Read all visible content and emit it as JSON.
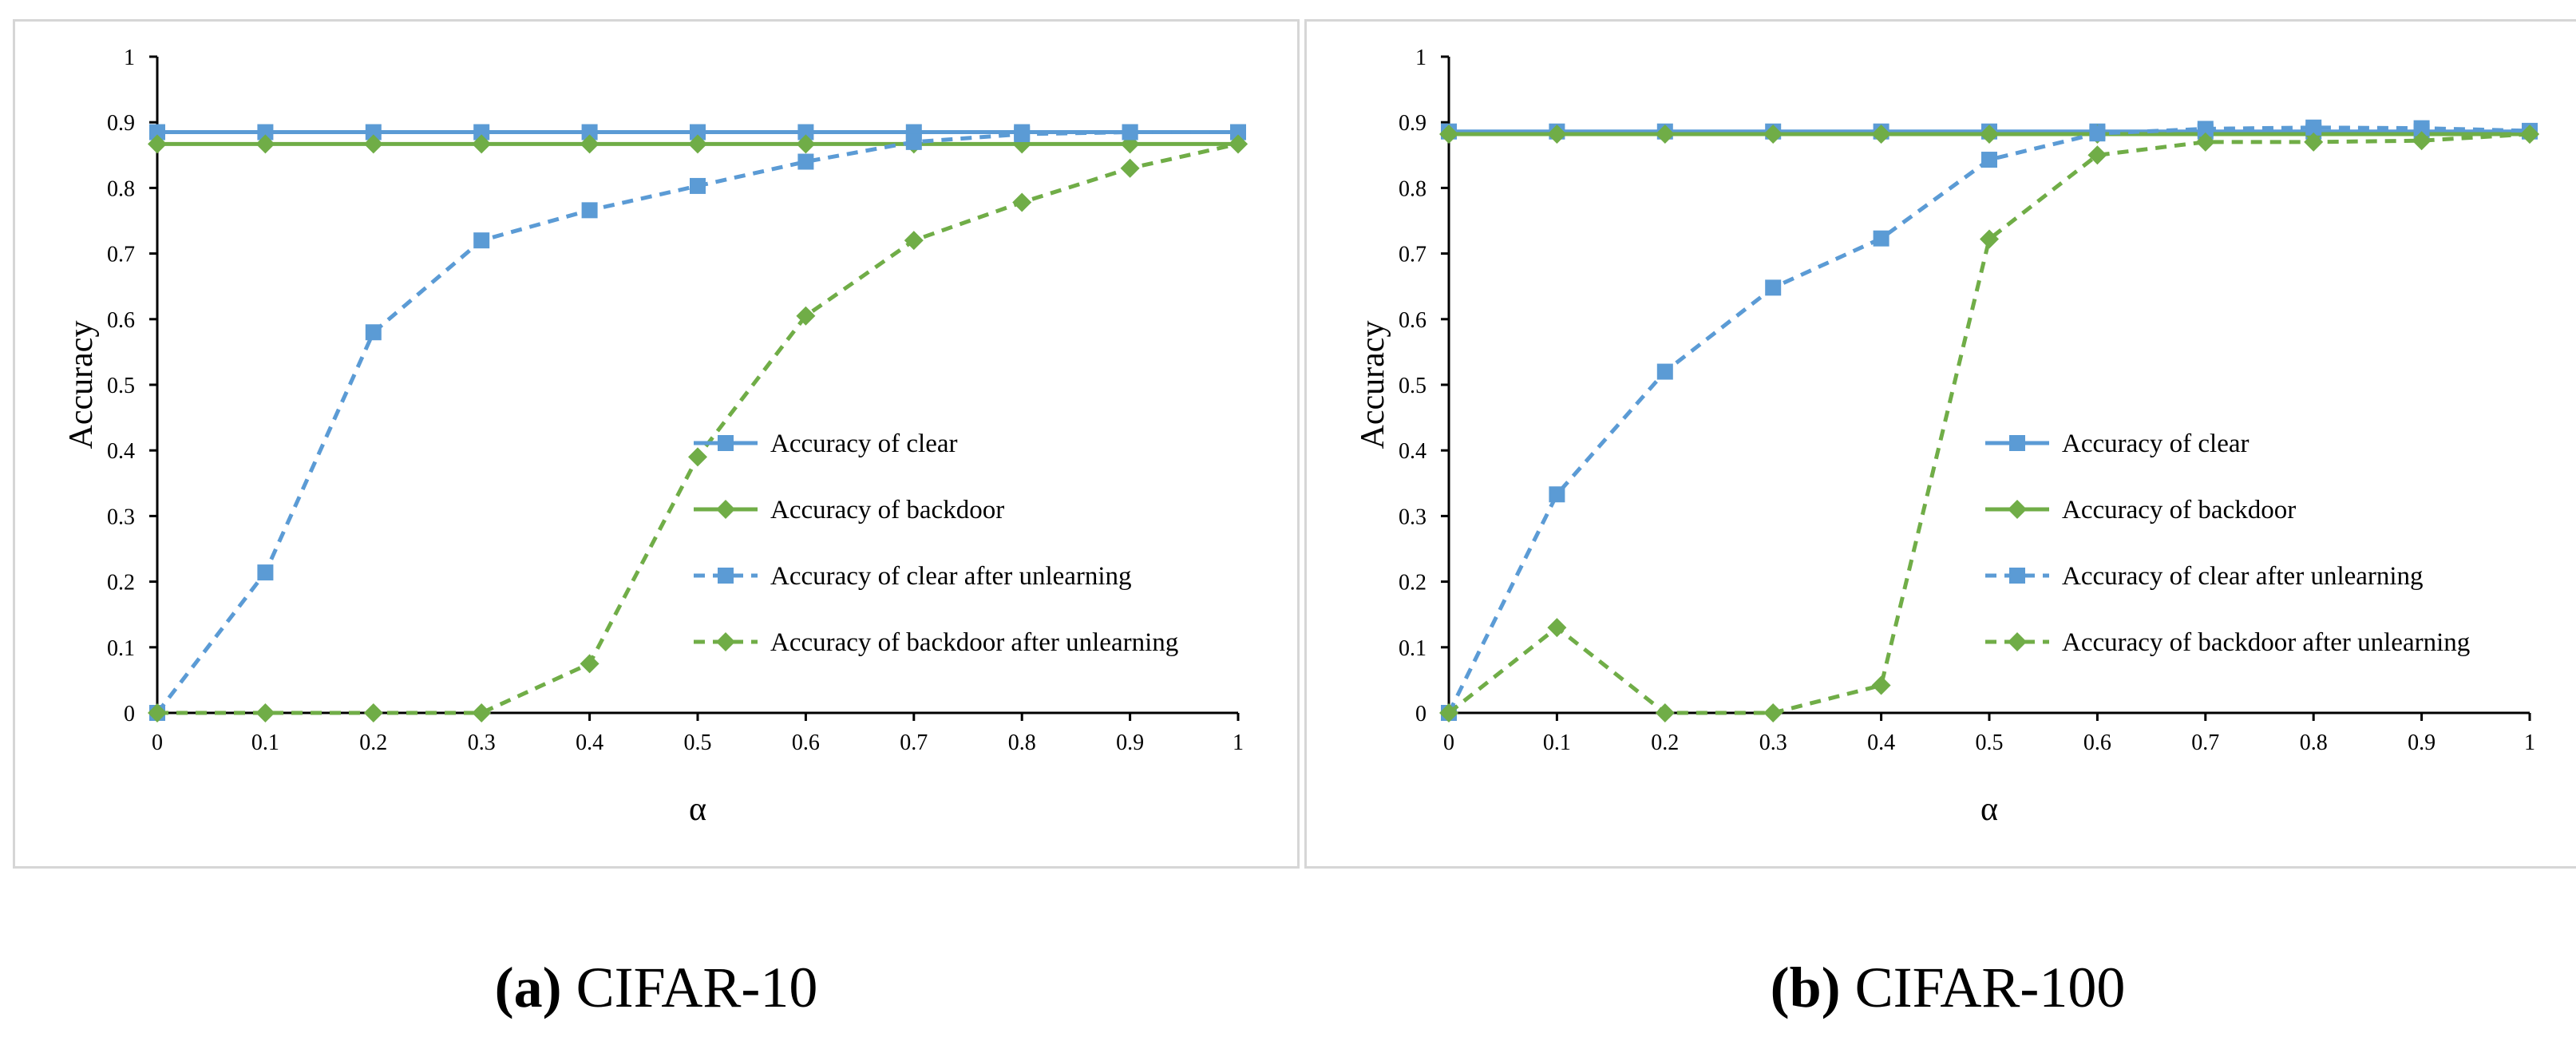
{
  "chart_data": [
    {
      "type": "line",
      "id": "a",
      "caption_label": "(a)",
      "caption_text": "CIFAR-10",
      "xlabel": "α",
      "ylabel": "Accuracy",
      "xlim": [
        0,
        1
      ],
      "ylim": [
        0,
        1
      ],
      "x": [
        0,
        0.1,
        0.2,
        0.3,
        0.4,
        0.5,
        0.6,
        0.7,
        0.8,
        0.9,
        1
      ],
      "xticks": [
        "0",
        "0.1",
        "0.2",
        "0.3",
        "0.4",
        "0.5",
        "0.6",
        "0.7",
        "0.8",
        "0.9",
        "1"
      ],
      "yticks": [
        "0",
        "0.1",
        "0.2",
        "0.3",
        "0.4",
        "0.5",
        "0.6",
        "0.7",
        "0.8",
        "0.9",
        "1"
      ],
      "legend_position": "right",
      "series": [
        {
          "name": "Accuracy of clear",
          "color": "#5b9bd5",
          "dash": "solid",
          "marker": "square",
          "values": [
            0.885,
            0.885,
            0.885,
            0.885,
            0.885,
            0.885,
            0.885,
            0.885,
            0.885,
            0.885,
            0.885
          ]
        },
        {
          "name": "Accuracy of backdoor",
          "color": "#70ad47",
          "dash": "solid",
          "marker": "diamond",
          "values": [
            0.867,
            0.867,
            0.867,
            0.867,
            0.867,
            0.867,
            0.867,
            0.867,
            0.867,
            0.867,
            0.867
          ]
        },
        {
          "name": "Accuracy of clear after unlearning",
          "color": "#5b9bd5",
          "dash": "dashed",
          "marker": "square",
          "values": [
            0.0,
            0.214,
            0.58,
            0.72,
            0.766,
            0.803,
            0.84,
            0.87,
            0.882,
            0.885,
            0.885
          ]
        },
        {
          "name": "Accuracy of backdoor after unlearning",
          "color": "#70ad47",
          "dash": "dashed",
          "marker": "diamond",
          "values": [
            0.0,
            0.0,
            0.0,
            0.0,
            0.075,
            0.39,
            0.605,
            0.72,
            0.778,
            0.83,
            0.867
          ]
        }
      ]
    },
    {
      "type": "line",
      "id": "b",
      "caption_label": "(b)",
      "caption_text": "CIFAR-100",
      "xlabel": "α",
      "ylabel": "Accuracy",
      "xlim": [
        0,
        1
      ],
      "ylim": [
        0,
        1
      ],
      "x": [
        0,
        0.1,
        0.2,
        0.3,
        0.4,
        0.5,
        0.6,
        0.7,
        0.8,
        0.9,
        1
      ],
      "xticks": [
        "0",
        "0.1",
        "0.2",
        "0.3",
        "0.4",
        "0.5",
        "0.6",
        "0.7",
        "0.8",
        "0.9",
        "1"
      ],
      "yticks": [
        "0",
        "0.1",
        "0.2",
        "0.3",
        "0.4",
        "0.5",
        "0.6",
        "0.7",
        "0.8",
        "0.9",
        "1"
      ],
      "legend_position": "right",
      "series": [
        {
          "name": "Accuracy of clear",
          "color": "#5b9bd5",
          "dash": "solid",
          "marker": "square",
          "values": [
            0.886,
            0.886,
            0.886,
            0.886,
            0.886,
            0.886,
            0.886,
            0.886,
            0.886,
            0.886,
            0.886
          ]
        },
        {
          "name": "Accuracy of backdoor",
          "color": "#70ad47",
          "dash": "solid",
          "marker": "diamond",
          "values": [
            0.882,
            0.882,
            0.882,
            0.882,
            0.882,
            0.882,
            0.882,
            0.882,
            0.882,
            0.882,
            0.882
          ]
        },
        {
          "name": "Accuracy of clear after unlearning",
          "color": "#5b9bd5",
          "dash": "dashed",
          "marker": "square",
          "values": [
            0.0,
            0.333,
            0.52,
            0.648,
            0.723,
            0.843,
            0.883,
            0.89,
            0.892,
            0.891,
            0.887
          ]
        },
        {
          "name": "Accuracy of backdoor after unlearning",
          "color": "#70ad47",
          "dash": "dashed",
          "marker": "diamond",
          "values": [
            0.0,
            0.13,
            0.0,
            0.0,
            0.042,
            0.722,
            0.85,
            0.87,
            0.87,
            0.872,
            0.882
          ]
        }
      ]
    }
  ]
}
